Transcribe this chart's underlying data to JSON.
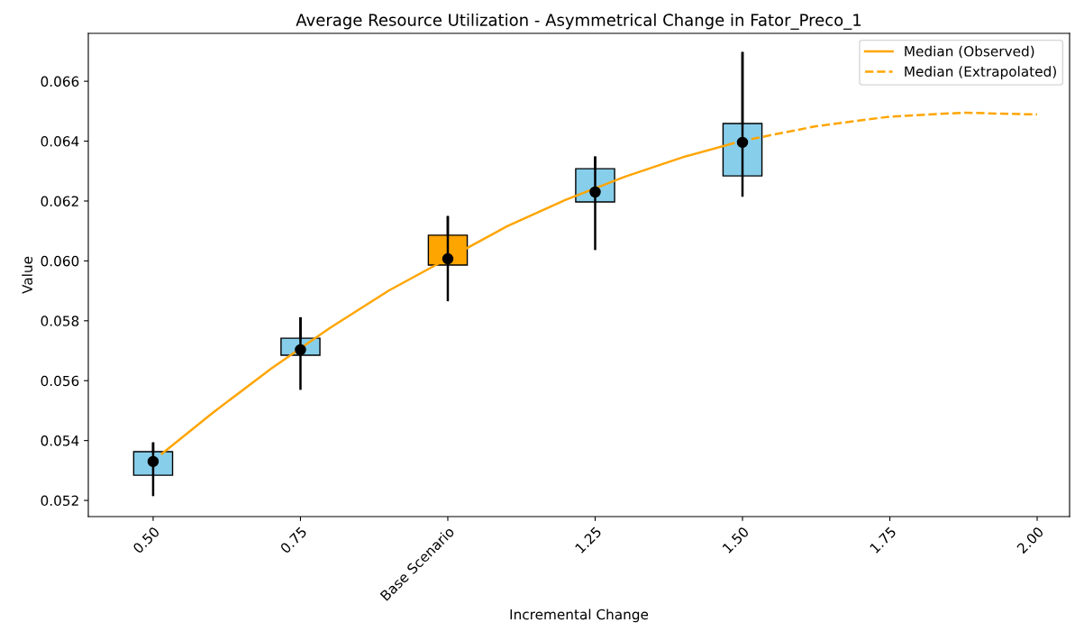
{
  "chart_data": {
    "type": "box",
    "title": "Average Resource Utilization - Asymmetrical Change in Fator_Preco_1",
    "xlabel": "Incremental Change",
    "ylabel": "Value",
    "x": [
      0.5,
      0.75,
      1.0,
      1.25,
      1.5
    ],
    "colors": [
      "#87ceeb",
      "#87ceeb",
      "#ffa500",
      "#87ceeb",
      "#87ceeb"
    ],
    "boxes": [
      {
        "low": 0.05218,
        "q1": 0.05284,
        "median": 0.0533,
        "q3": 0.05363,
        "high": 0.0539
      },
      {
        "low": 0.05573,
        "q1": 0.05685,
        "median": 0.05703,
        "q3": 0.05742,
        "high": 0.05808
      },
      {
        "low": 0.05869,
        "q1": 0.05986,
        "median": 0.06007,
        "q3": 0.06086,
        "high": 0.06146
      },
      {
        "low": 0.0604,
        "q1": 0.06197,
        "median": 0.0623,
        "q3": 0.06308,
        "high": 0.06345
      },
      {
        "low": 0.06218,
        "q1": 0.06284,
        "median": 0.06396,
        "q3": 0.06459,
        "high": 0.06694
      }
    ],
    "series": [
      {
        "name": "Median (Observed)",
        "type": "line",
        "color": "#ffa500",
        "line_style": "solid",
        "x": [
          0.515,
          0.6,
          0.7,
          0.8,
          0.9,
          1.1,
          1.2,
          1.3,
          1.4,
          1.485
        ],
        "values": [
          0.05356,
          0.05491,
          0.0564,
          0.05776,
          0.05901,
          0.06115,
          0.06204,
          0.06281,
          0.06347,
          0.06393
        ]
      },
      {
        "name": "Median (Extrapolated)",
        "type": "line",
        "color": "#ffa500",
        "line_style": "dashed",
        "x": [
          1.515,
          1.625,
          1.75,
          1.875,
          2.0
        ],
        "values": [
          0.06407,
          0.0645,
          0.06482,
          0.06495,
          0.06489
        ]
      }
    ],
    "xlim": [
      0.39,
      2.055
    ],
    "ylim": [
      0.05146,
      0.0676
    ],
    "xticks": [
      {
        "value": 0.5,
        "label": "0.50"
      },
      {
        "value": 0.75,
        "label": "0.75"
      },
      {
        "value": 1.0,
        "label": "Base Scenario"
      },
      {
        "value": 1.25,
        "label": "1.25"
      },
      {
        "value": 1.5,
        "label": "1.50"
      },
      {
        "value": 1.75,
        "label": "1.75"
      },
      {
        "value": 2.0,
        "label": "2.00"
      }
    ],
    "yticks": [
      0.052,
      0.054,
      0.056,
      0.058,
      {
        "value": 0.06,
        "label": "0.060"
      },
      0.062,
      0.064,
      0.066
    ],
    "legend": "top right",
    "grid": false
  }
}
